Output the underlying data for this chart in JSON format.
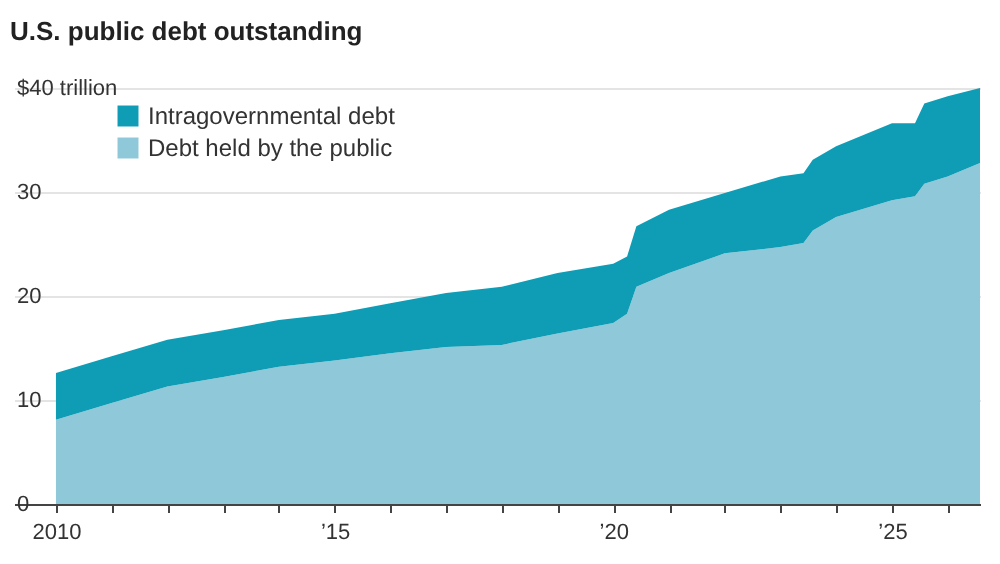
{
  "chart_data": {
    "type": "area",
    "title": "U.S. public debt outstanding",
    "stacked": true,
    "x": [
      "2010-01",
      "2011-01",
      "2012-01",
      "2013-01",
      "2014-01",
      "2015-01",
      "2016-01",
      "2017-01",
      "2018-01",
      "2019-01",
      "2020-01",
      "2020-04",
      "2020-06",
      "2021-01",
      "2022-01",
      "2023-01",
      "2023-06",
      "2023-08",
      "2024-01",
      "2025-01",
      "2025-06",
      "2025-08",
      "2026-01",
      "2026-08"
    ],
    "series": [
      {
        "name": "Debt held by the public",
        "color": "#8fc8d9",
        "values": [
          8.1,
          9.7,
          11.3,
          12.2,
          13.2,
          13.8,
          14.5,
          15.1,
          15.3,
          16.4,
          17.4,
          18.3,
          20.9,
          22.2,
          24.1,
          24.7,
          25.1,
          26.3,
          27.6,
          29.2,
          29.6,
          30.8,
          31.5,
          32.8
        ]
      },
      {
        "name": "Intragovernmental debt",
        "color": "#0f9db6",
        "values": [
          4.5,
          4.5,
          4.5,
          4.5,
          4.5,
          4.5,
          4.8,
          5.2,
          5.6,
          5.8,
          5.7,
          5.5,
          5.8,
          6.1,
          5.8,
          6.8,
          6.7,
          6.8,
          6.8,
          7.4,
          7.0,
          7.7,
          7.7,
          7.2
        ]
      }
    ],
    "xlim": [
      "2009-04",
      "2026-08"
    ],
    "xticks": [
      "2010",
      {
        "value": "2011",
        "label": null
      },
      {
        "value": "2012",
        "label": null
      },
      {
        "value": "2013",
        "label": null
      },
      {
        "value": "2014",
        "label": null
      },
      {
        "value": "2015",
        "label": "’15"
      },
      {
        "value": "2016",
        "label": null
      },
      {
        "value": "2017",
        "label": null
      },
      {
        "value": "2018",
        "label": null
      },
      {
        "value": "2019",
        "label": null
      },
      {
        "value": "2020",
        "label": "’20"
      },
      {
        "value": "2021",
        "label": null
      },
      {
        "value": "2022",
        "label": null
      },
      {
        "value": "2023",
        "label": null
      },
      {
        "value": "2024",
        "label": null
      },
      {
        "value": "2025",
        "label": "’25"
      },
      {
        "value": "2026",
        "label": null
      }
    ],
    "ylim": [
      0,
      40
    ],
    "yticks": [
      0,
      10,
      20,
      30,
      {
        "value": 40,
        "label": "$40 trillion"
      }
    ],
    "grid": "y",
    "legend": "top left"
  }
}
